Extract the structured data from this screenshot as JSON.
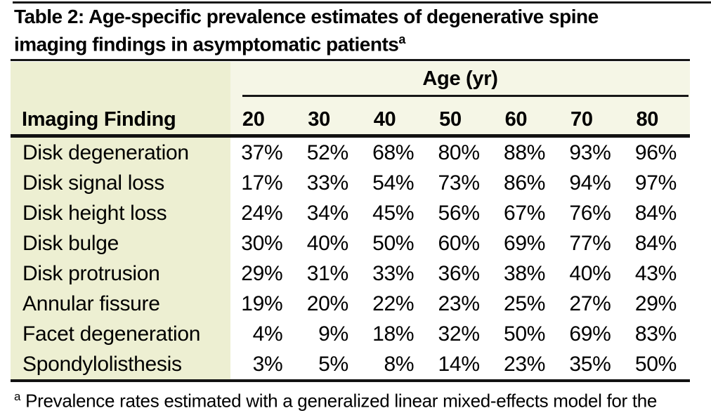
{
  "page": {
    "title_line1": "Table 2: Age-specific prevalence estimates of degenerative spine",
    "title_line2": "imaging findings in asymptomatic patients",
    "title_superscript": "a"
  },
  "table": {
    "age_group_label": "Age (yr)",
    "finding_column_header": "Imaging Finding",
    "age_headers": [
      "20",
      "30",
      "40",
      "50",
      "60",
      "70",
      "80"
    ],
    "rows": [
      {
        "finding": "Disk degeneration",
        "values": [
          "37%",
          "52%",
          "68%",
          "80%",
          "88%",
          "93%",
          "96%"
        ]
      },
      {
        "finding": "Disk signal loss",
        "values": [
          "17%",
          "33%",
          "54%",
          "73%",
          "86%",
          "94%",
          "97%"
        ]
      },
      {
        "finding": "Disk height loss",
        "values": [
          "24%",
          "34%",
          "45%",
          "56%",
          "67%",
          "76%",
          "84%"
        ]
      },
      {
        "finding": "Disk bulge",
        "values": [
          "30%",
          "40%",
          "50%",
          "60%",
          "69%",
          "77%",
          "84%"
        ]
      },
      {
        "finding": "Disk protrusion",
        "values": [
          "29%",
          "31%",
          "33%",
          "36%",
          "38%",
          "40%",
          "43%"
        ]
      },
      {
        "finding": "Annular fissure",
        "values": [
          "19%",
          "20%",
          "22%",
          "23%",
          "25%",
          "27%",
          "29%"
        ]
      },
      {
        "finding": "Facet degeneration",
        "values": [
          "4%",
          "9%",
          "18%",
          "32%",
          "50%",
          "69%",
          "83%"
        ]
      },
      {
        "finding": "Spondylolisthesis",
        "values": [
          "3%",
          "5%",
          "8%",
          "14%",
          "23%",
          "35%",
          "50%"
        ]
      }
    ]
  },
  "footnote": {
    "marker": "a",
    "text": "Prevalence rates estimated with a generalized linear mixed-effects model for the"
  },
  "colors": {
    "header_band": "#f5f6e6",
    "finding_column_band": "#edefd2",
    "rule": "#161616",
    "text": "#000000",
    "background": "#ffffff"
  }
}
